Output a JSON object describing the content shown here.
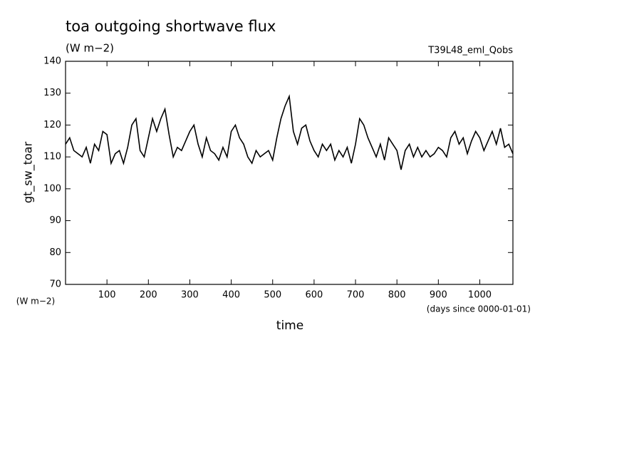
{
  "chart_data": {
    "type": "line",
    "title": "toa outgoing shortwave flux",
    "subtitle": "(W m−2)",
    "annotation": "T39L48_eml_Qobs",
    "y_label": "gt_sw_toar",
    "y_unit": "(W m−2)",
    "x_unit": "(days since 0000-01-01)",
    "x_label": "time",
    "xlim": [
      0,
      1080
    ],
    "xticks": [
      100,
      200,
      300,
      400,
      500,
      600,
      700,
      800,
      900,
      1000
    ],
    "ylim": [
      70,
      140
    ],
    "yticks": [
      70,
      80,
      90,
      100,
      110,
      120,
      130,
      140
    ],
    "series": [
      {
        "color": "#000000",
        "x": [
          0,
          10,
          20,
          30,
          40,
          50,
          60,
          70,
          80,
          90,
          100,
          110,
          120,
          130,
          140,
          150,
          160,
          170,
          180,
          190,
          200,
          210,
          220,
          230,
          240,
          250,
          260,
          270,
          280,
          290,
          300,
          310,
          320,
          330,
          340,
          350,
          360,
          370,
          380,
          390,
          400,
          410,
          420,
          430,
          440,
          450,
          460,
          470,
          480,
          490,
          500,
          510,
          520,
          530,
          540,
          550,
          560,
          570,
          580,
          590,
          600,
          610,
          620,
          630,
          640,
          650,
          660,
          670,
          680,
          690,
          700,
          710,
          720,
          730,
          740,
          750,
          760,
          770,
          780,
          790,
          800,
          810,
          820,
          830,
          840,
          850,
          860,
          870,
          880,
          890,
          900,
          910,
          920,
          930,
          940,
          950,
          960,
          970,
          980,
          990,
          1000,
          1010,
          1020,
          1030,
          1040,
          1050,
          1060,
          1070,
          1080
        ],
        "values": [
          114,
          116,
          112,
          111,
          110,
          113,
          108,
          114,
          112,
          118,
          117,
          108,
          111,
          112,
          108,
          113,
          120,
          122,
          112,
          110,
          116,
          122,
          118,
          122,
          125,
          117,
          110,
          113,
          112,
          115,
          118,
          120,
          114,
          110,
          116,
          112,
          111,
          109,
          113,
          110,
          118,
          120,
          116,
          114,
          110,
          108,
          112,
          110,
          111,
          112,
          109,
          116,
          122,
          126,
          129,
          118,
          114,
          119,
          120,
          115,
          112,
          110,
          114,
          112,
          114,
          109,
          112,
          110,
          113,
          108,
          114,
          122,
          120,
          116,
          113,
          110,
          114,
          109,
          116,
          114,
          112,
          106,
          112,
          114,
          110,
          113,
          110,
          112,
          110,
          111,
          113,
          112,
          110,
          116,
          118,
          114,
          116,
          111,
          115,
          118,
          116,
          112,
          115,
          118,
          114,
          119,
          113,
          114,
          111
        ]
      }
    ]
  }
}
